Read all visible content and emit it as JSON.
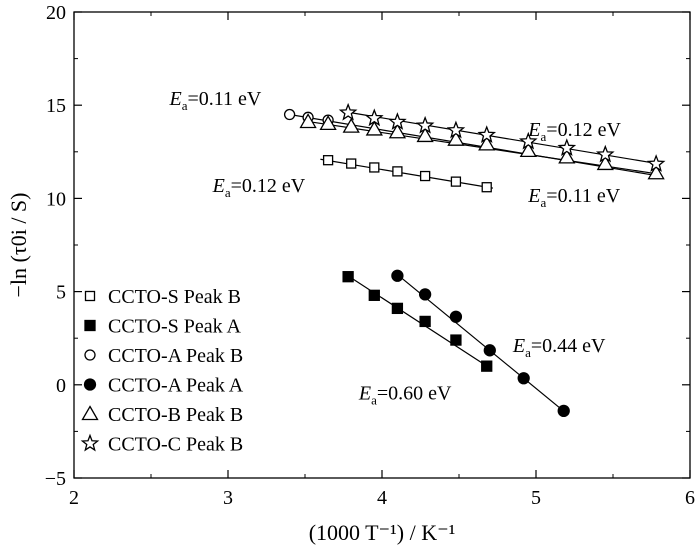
{
  "chart_data": {
    "type": "scatter",
    "xlabel": "(1000 T⁻¹) / K⁻¹",
    "ylabel": "−ln (τ0i / S)",
    "xlim": [
      2,
      6
    ],
    "ylim": [
      -5,
      20
    ],
    "xticks": [
      2,
      3,
      4,
      5,
      6
    ],
    "yticks": [
      -5,
      0,
      5,
      10,
      15,
      20
    ],
    "grid": false,
    "legend_position": "lower-left",
    "series": [
      {
        "name": "CCTO-S Peak B",
        "marker": "open-square",
        "x": [
          3.65,
          3.8,
          3.95,
          4.1,
          4.28,
          4.48,
          4.68
        ],
        "y": [
          12.05,
          11.87,
          11.66,
          11.45,
          11.2,
          10.9,
          10.6
        ]
      },
      {
        "name": "CCTO-S Peak A",
        "marker": "filled-square",
        "x": [
          3.78,
          3.95,
          4.1,
          4.28,
          4.48,
          4.68
        ],
        "y": [
          5.8,
          4.8,
          4.1,
          3.4,
          2.4,
          1.0
        ]
      },
      {
        "name": "CCTO-A Peak B",
        "marker": "open-circle",
        "x": [
          3.4,
          3.52,
          3.65
        ],
        "y": [
          14.5,
          14.35,
          14.2
        ]
      },
      {
        "name": "CCTO-A Peak A",
        "marker": "filled-circle",
        "x": [
          4.1,
          4.28,
          4.48,
          4.7,
          4.92,
          5.18
        ],
        "y": [
          5.85,
          4.85,
          3.65,
          1.85,
          0.35,
          -1.4
        ]
      },
      {
        "name": "CCTO-B Peak B",
        "marker": "open-triangle",
        "x": [
          3.52,
          3.65,
          3.8,
          3.95,
          4.1,
          4.28,
          4.48,
          4.68,
          4.95,
          5.2,
          5.45,
          5.78
        ],
        "y": [
          14.1,
          14.0,
          13.85,
          13.7,
          13.55,
          13.35,
          13.15,
          12.9,
          12.55,
          12.2,
          11.85,
          11.35
        ]
      },
      {
        "name": "CCTO-C Peak B",
        "marker": "open-star",
        "x": [
          3.78,
          3.95,
          4.1,
          4.28,
          4.48,
          4.68,
          4.95,
          5.2,
          5.45,
          5.78
        ],
        "y": [
          14.6,
          14.3,
          14.1,
          13.9,
          13.65,
          13.4,
          13.05,
          12.7,
          12.35,
          11.85
        ]
      }
    ],
    "fits": [
      {
        "series": "CCTO-S Peak B",
        "x": [
          3.6,
          4.72
        ],
        "y": [
          12.1,
          10.55
        ]
      },
      {
        "series": "CCTO-S Peak A",
        "x": [
          3.76,
          4.7
        ],
        "y": [
          5.95,
          0.9
        ]
      },
      {
        "series": "CCTO-A Peak A",
        "x": [
          4.08,
          5.2
        ],
        "y": [
          6.05,
          -1.55
        ]
      },
      {
        "series": "CCTO-A Peak B",
        "x": [
          3.4,
          5.8
        ],
        "y": [
          14.5,
          11.2
        ]
      },
      {
        "series": "CCTO-B Peak B",
        "x": [
          3.5,
          5.8
        ],
        "y": [
          14.15,
          11.3
        ]
      },
      {
        "series": "CCTO-C Peak B",
        "x": [
          3.76,
          5.8
        ],
        "y": [
          14.65,
          11.85
        ]
      }
    ],
    "annotations": [
      {
        "text": "E",
        "subscript": "a",
        "value": "=0.11 eV",
        "x": 2.62,
        "y": 15.0
      },
      {
        "text": "E",
        "subscript": "a",
        "value": "=0.12 eV",
        "x": 4.95,
        "y": 13.35
      },
      {
        "text": "E",
        "subscript": "a",
        "value": "=0.12 eV",
        "x": 2.9,
        "y": 10.35
      },
      {
        "text": "E",
        "subscript": "a",
        "value": "=0.11 eV",
        "x": 4.95,
        "y": 9.8
      },
      {
        "text": "E",
        "subscript": "a",
        "value": "=0.44 eV",
        "x": 4.85,
        "y": 1.75
      },
      {
        "text": "E",
        "subscript": "a",
        "value": "=0.60 eV",
        "x": 3.85,
        "y": -0.8
      }
    ]
  }
}
